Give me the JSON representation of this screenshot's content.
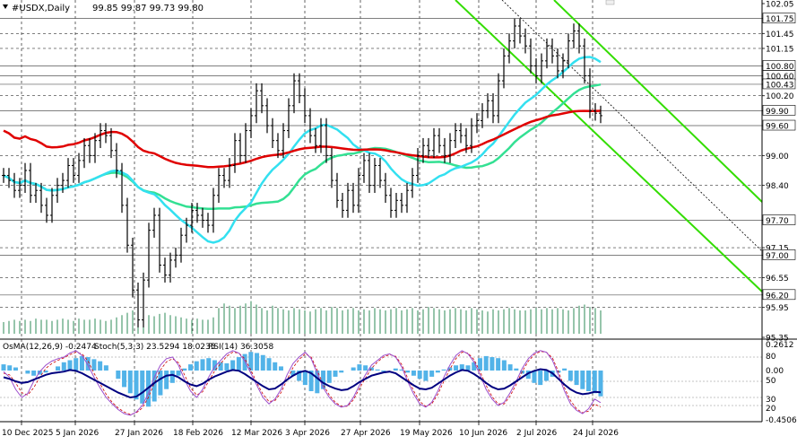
{
  "header": {
    "symbol": "#USDX,Daily",
    "ohlc": "99.85 99.87 99.73 99.80",
    "menu_icon": "triangle-down-icon"
  },
  "oscillator_header": {
    "osma": "OsMA(12,26,9) -0.2474",
    "stoch": "Stoch(5,3,3) 23.5294 18.0235",
    "rsi": "RSI(14) 36.3058"
  },
  "colors": {
    "price_bars": "#000000",
    "ma_red": "#e00000",
    "ma_cyan": "#33e0f0",
    "ma_green": "#33e093",
    "channel_green": "#33dd00",
    "channel_black": "#000000",
    "hist_blue": "#52b3e8",
    "volume_green": "#2e8b57",
    "stoch_blue": "#0000cc",
    "stoch_signal": "#cc0000",
    "rsi_purple": "#9c4dcc",
    "osc_line": "#000080"
  },
  "chart_data": {
    "type": "line",
    "title": "#USDX,Daily",
    "xlabel": "",
    "ylabel": "",
    "ylim": [
      95.35,
      102.05
    ],
    "y_ticks": [
      "102.05",
      "101.75",
      "101.45",
      "101.15",
      "100.80",
      "100.60",
      "100.43",
      "100.20",
      "99.90",
      "99.60",
      "99.00",
      "98.40",
      "97.70",
      "97.15",
      "97.00",
      "96.55",
      "96.20",
      "95.95",
      "95.35"
    ],
    "x_ticks": [
      "10 Dec 2025",
      "5 Jan 2026",
      "27 Jan 2026",
      "18 Feb 2026",
      "12 Mar 2026",
      "3 Apr 2026",
      "27 Apr 2026",
      "19 May 2026",
      "10 Jun 2026",
      "2 Jul 2026",
      "24 Jul 2026"
    ],
    "price_levels": [
      {
        "label": "101.75",
        "value": 101.75
      },
      {
        "label": "100.80",
        "value": 100.8
      },
      {
        "label": "100.60",
        "value": 100.6
      },
      {
        "label": "100.43",
        "value": 100.43
      },
      {
        "label": "99.90",
        "value": 99.9
      },
      {
        "label": "99.60",
        "value": 99.6
      },
      {
        "label": "97.70",
        "value": 97.7
      },
      {
        "label": "97.00",
        "value": 97.0
      },
      {
        "label": "96.20",
        "value": 96.2
      }
    ],
    "closes": [
      98.6,
      98.5,
      98.3,
      98.4,
      98.7,
      98.2,
      98.3,
      98.0,
      97.8,
      98.2,
      98.4,
      98.5,
      98.8,
      98.6,
      98.9,
      99.2,
      99.0,
      99.3,
      99.5,
      99.4,
      99.1,
      98.7,
      98.0,
      97.2,
      96.3,
      95.7,
      96.5,
      97.5,
      97.8,
      96.8,
      96.6,
      96.9,
      97.0,
      97.4,
      97.6,
      97.9,
      97.8,
      97.7,
      97.6,
      98.2,
      98.6,
      98.5,
      98.8,
      99.3,
      99.0,
      99.5,
      99.8,
      100.3,
      100.0,
      99.6,
      99.3,
      99.1,
      99.5,
      100.0,
      100.5,
      100.2,
      99.8,
      99.4,
      99.2,
      99.6,
      99.0,
      98.5,
      98.1,
      97.9,
      98.3,
      98.0,
      98.6,
      98.9,
      98.4,
      98.8,
      98.5,
      98.2,
      97.9,
      98.1,
      98.0,
      98.3,
      98.6,
      99.0,
      99.2,
      99.1,
      99.4,
      99.2,
      99.0,
      99.3,
      99.5,
      99.4,
      99.2,
      99.6,
      99.7,
      99.9,
      100.1,
      99.8,
      100.5,
      101.0,
      101.3,
      101.6,
      101.4,
      101.2,
      100.8,
      100.6,
      100.9,
      101.2,
      101.0,
      100.7,
      100.9,
      101.3,
      101.5,
      101.2,
      100.6,
      99.9,
      99.85,
      99.8
    ],
    "volume": [
      10,
      11,
      12,
      11,
      12,
      11,
      13,
      12,
      12,
      11,
      12,
      13,
      12,
      11,
      13,
      12,
      12,
      13,
      12,
      11,
      12,
      14,
      16,
      18,
      20,
      22,
      18,
      16,
      15,
      17,
      18,
      16,
      15,
      14,
      13,
      12,
      13,
      12,
      12,
      14,
      22,
      26,
      24,
      22,
      24,
      26,
      28,
      25,
      22,
      20,
      24,
      22,
      21,
      20,
      22,
      21,
      20,
      19,
      21,
      22,
      20,
      23,
      22,
      20,
      21,
      22,
      20,
      21,
      20,
      22,
      21,
      20,
      21,
      22,
      20,
      21,
      22,
      20,
      21,
      23,
      22,
      21,
      20,
      21,
      22,
      21,
      20,
      22,
      21,
      20,
      19,
      21,
      20,
      21,
      22,
      21,
      20,
      20,
      21,
      22,
      21,
      22,
      21,
      22,
      21,
      20,
      22,
      24,
      25,
      23,
      22,
      20
    ],
    "oscillator_ticks": [
      "0.2612",
      "80",
      "0.00",
      "50",
      "30",
      "20",
      "-0.4506"
    ],
    "osma": [
      0.06,
      0.05,
      0.03,
      0.0,
      -0.03,
      -0.05,
      -0.04,
      -0.02,
      0.0,
      0.04,
      0.08,
      0.1,
      0.12,
      0.14,
      0.13,
      0.11,
      0.09,
      0.05,
      0.0,
      -0.08,
      -0.16,
      -0.22,
      -0.28,
      -0.32,
      -0.35,
      -0.3,
      -0.24,
      -0.18,
      -0.12,
      -0.05,
      0.02,
      0.06,
      0.09,
      0.11,
      0.12,
      0.1,
      0.08,
      0.07,
      0.1,
      0.13,
      0.16,
      0.18,
      0.17,
      0.15,
      0.12,
      0.08,
      0.04,
      0.0,
      -0.05,
      -0.1,
      -0.14,
      -0.2,
      -0.22,
      -0.18,
      -0.12,
      -0.06,
      -0.02,
      0.0,
      0.03,
      0.06,
      0.05,
      0.03,
      0.01,
      -0.01,
      0.0,
      0.02,
      0.01,
      -0.02,
      -0.05,
      -0.08,
      -0.1,
      -0.06,
      -0.02,
      0.01,
      0.03,
      0.05,
      0.06,
      0.05,
      0.08,
      0.12,
      0.14,
      0.13,
      0.12,
      0.1,
      0.06,
      0.02,
      -0.03,
      -0.08,
      -0.12,
      -0.14,
      -0.1,
      -0.06,
      -0.02,
      0.02,
      -0.1,
      -0.14,
      -0.18,
      -0.2,
      -0.22,
      -0.25
    ],
    "stochastic": [
      62,
      55,
      40,
      30,
      35,
      50,
      62,
      70,
      75,
      78,
      80,
      85,
      88,
      82,
      70,
      55,
      42,
      30,
      22,
      15,
      10,
      8,
      12,
      20,
      35,
      55,
      70,
      78,
      80,
      70,
      52,
      38,
      30,
      40,
      55,
      68,
      76,
      84,
      88,
      85,
      75,
      60,
      45,
      30,
      22,
      28,
      40,
      58,
      72,
      80,
      86,
      78,
      60,
      42,
      30,
      22,
      18,
      20,
      30,
      45,
      58,
      70,
      76,
      82,
      84,
      80,
      68,
      50,
      34,
      22,
      18,
      24,
      38,
      55,
      70,
      82,
      88,
      84,
      74,
      58,
      40,
      28,
      20,
      24,
      36,
      50,
      66,
      78,
      85,
      88,
      86,
      76,
      58,
      38,
      22,
      14,
      10,
      16,
      28,
      23.53
    ],
    "stochastic_signal": [
      60,
      58,
      48,
      36,
      33,
      42,
      55,
      66,
      72,
      76,
      79,
      83,
      86,
      84,
      75,
      60,
      47,
      34,
      24,
      17,
      12,
      9,
      11,
      17,
      30,
      48,
      64,
      74,
      78,
      73,
      58,
      42,
      33,
      37,
      50,
      63,
      72,
      81,
      86,
      85,
      78,
      64,
      48,
      34,
      25,
      26,
      36,
      52,
      67,
      77,
      84,
      80,
      64,
      46,
      33,
      24,
      19,
      19,
      27,
      41,
      54,
      66,
      74,
      80,
      83,
      81,
      71,
      54,
      38,
      25,
      19,
      22,
      34,
      50,
      65,
      78,
      86,
      85,
      77,
      62,
      45,
      31,
      22,
      22,
      32,
      46,
      62,
      75,
      83,
      87,
      86,
      79,
      62,
      42,
      26,
      16,
      11,
      13,
      22,
      18.02
    ],
    "rsi": [
      55,
      53,
      50,
      48,
      49,
      52,
      55,
      58,
      60,
      61,
      62,
      64,
      63,
      60,
      56,
      52,
      48,
      44,
      40,
      36,
      33,
      30,
      31,
      36,
      42,
      48,
      53,
      57,
      58,
      55,
      50,
      46,
      44,
      47,
      52,
      56,
      59,
      62,
      64,
      63,
      59,
      54,
      49,
      44,
      40,
      41,
      46,
      52,
      57,
      61,
      63,
      60,
      54,
      48,
      44,
      41,
      39,
      40,
      44,
      49,
      53,
      57,
      59,
      61,
      62,
      60,
      55,
      50,
      45,
      41,
      40,
      42,
      47,
      52,
      57,
      61,
      64,
      63,
      59,
      54,
      48,
      43,
      40,
      41,
      45,
      50,
      55,
      60,
      63,
      65,
      64,
      60,
      53,
      46,
      40,
      36,
      34,
      35,
      37,
      36.31
    ]
  }
}
